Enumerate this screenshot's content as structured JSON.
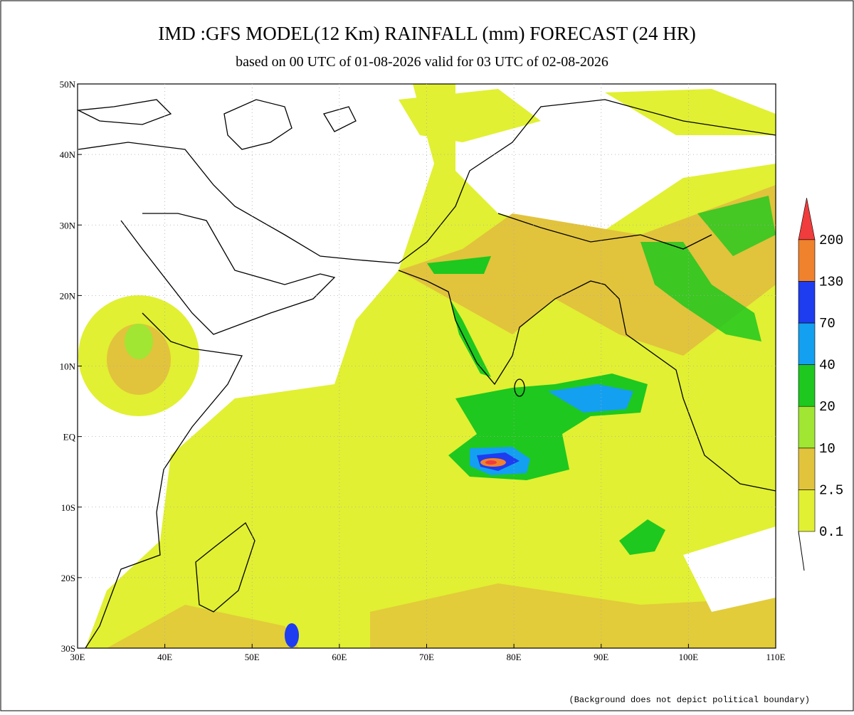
{
  "header": {
    "title": "IMD :GFS MODEL(12 Km) RAINFALL (mm) FORECAST (24 HR)",
    "subtitle": "based on 00 UTC of 01-08-2026 valid for 03 UTC of 02-08-2026"
  },
  "map": {
    "lon_ticks": [
      "30E",
      "40E",
      "50E",
      "60E",
      "70E",
      "80E",
      "90E",
      "100E",
      "110E"
    ],
    "lat_ticks": [
      "50N",
      "40N",
      "30N",
      "20N",
      "10N",
      "EQ",
      "10S",
      "20S",
      "30S"
    ]
  },
  "legend": {
    "levels": [
      0.1,
      2.5,
      10,
      20,
      40,
      70,
      130,
      200
    ],
    "colors": [
      "#e1f032",
      "#e2c33c",
      "#a0e632",
      "#1ec81e",
      "#14a0f0",
      "#1e3cf0",
      "#f0822d",
      "#f03c3c"
    ]
  },
  "footnote": "(Background does not depict political boundary)"
}
